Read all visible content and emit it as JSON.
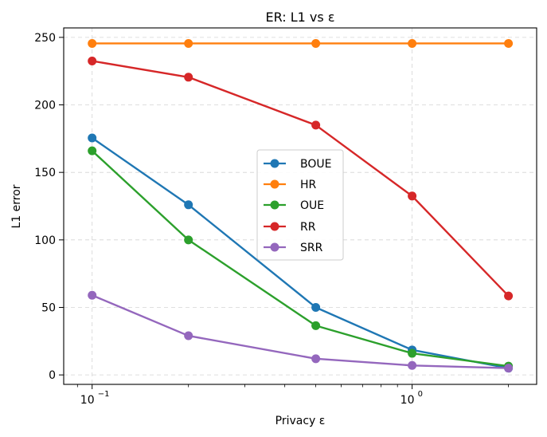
{
  "chart_data": {
    "type": "line",
    "title": "ER: L1 vs ε",
    "xlabel": "Privacy ε",
    "ylabel": "L1 error",
    "x_scale": "log",
    "x_tick_labels": [
      "10",
      "−1",
      "10",
      "0"
    ],
    "xlim": [
      0.0815,
      2.45
    ],
    "ylim": [
      -7,
      257
    ],
    "y_ticks": [
      0,
      50,
      100,
      150,
      200,
      250
    ],
    "grid": true,
    "legend_placement": "center",
    "x": [
      0.1,
      0.2,
      0.5,
      1.0,
      2.0
    ],
    "series": [
      {
        "name": "BOUE",
        "color": "#1f77b4",
        "values": [
          175.5,
          126,
          50,
          18.5,
          5
        ]
      },
      {
        "name": "HR",
        "color": "#ff7f0e",
        "values": [
          245.5,
          245.5,
          245.5,
          245.5,
          245.5
        ]
      },
      {
        "name": "OUE",
        "color": "#2ca02c",
        "values": [
          166,
          100,
          36.5,
          16,
          6.5
        ]
      },
      {
        "name": "RR",
        "color": "#d62728",
        "values": [
          232.5,
          220.5,
          185,
          132.5,
          58.5
        ]
      },
      {
        "name": "SRR",
        "color": "#9467bd",
        "values": [
          59,
          29,
          12,
          7,
          5
        ]
      }
    ]
  }
}
